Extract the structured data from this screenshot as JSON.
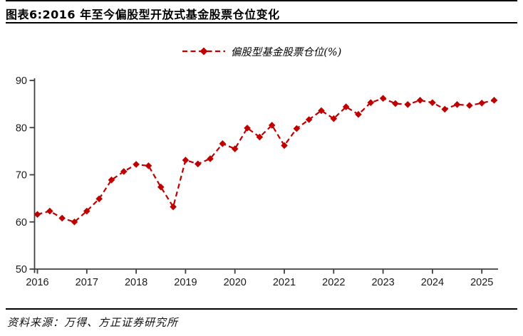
{
  "header": {
    "title": "图表6:2016 年至今偏股型开放式基金股票仓位变化"
  },
  "legend": {
    "label": "偏股型基金股票仓位(%)"
  },
  "footer": {
    "source": "资料来源：万得、方正证券研究所"
  },
  "colors": {
    "series": "#c00000",
    "axis": "#3f3f3f",
    "tick_label": "#1a1a1a",
    "rule": "#000000"
  },
  "chart_data": {
    "type": "line",
    "title": "图表6:2016 年至今偏股型开放式基金股票仓位变化",
    "legend_entries": [
      "偏股型基金股票仓位(%)"
    ],
    "legend_position": "top-center",
    "line_style": "dashed",
    "marker": "diamond",
    "grid": false,
    "xlabel": "",
    "ylabel": "",
    "ylim": [
      50,
      90
    ],
    "y_ticks": [
      50,
      60,
      70,
      80,
      90
    ],
    "x_tick_labels": [
      "2016",
      "2017",
      "2018",
      "2019",
      "2020",
      "2021",
      "2022",
      "2023",
      "2024",
      "2025"
    ],
    "x": [
      "2016Q1",
      "2016Q2",
      "2016Q3",
      "2016Q4",
      "2017Q1",
      "2017Q2",
      "2017Q3",
      "2017Q4",
      "2018Q1",
      "2018Q2",
      "2018Q3",
      "2018Q4",
      "2019Q1",
      "2019Q2",
      "2019Q3",
      "2019Q4",
      "2020Q1",
      "2020Q2",
      "2020Q3",
      "2020Q4",
      "2021Q1",
      "2021Q2",
      "2021Q3",
      "2021Q4",
      "2022Q1",
      "2022Q2",
      "2022Q3",
      "2022Q4",
      "2023Q1",
      "2023Q2",
      "2023Q3",
      "2023Q4",
      "2024Q1",
      "2024Q2",
      "2024Q3",
      "2024Q4",
      "2025Q1",
      "2025Q2"
    ],
    "series": [
      {
        "name": "偏股型基金股票仓位(%)",
        "color": "#c00000",
        "values": [
          61.6,
          62.3,
          60.8,
          60.0,
          62.3,
          64.9,
          68.9,
          70.7,
          72.2,
          71.9,
          67.4,
          63.2,
          73.1,
          72.3,
          73.4,
          76.6,
          75.5,
          79.9,
          78.0,
          80.5,
          76.2,
          79.8,
          81.7,
          83.6,
          81.9,
          84.4,
          82.8,
          85.3,
          86.2,
          85.1,
          84.9,
          85.8,
          85.3,
          83.9,
          84.9,
          84.7,
          85.2,
          85.8
        ]
      }
    ]
  }
}
